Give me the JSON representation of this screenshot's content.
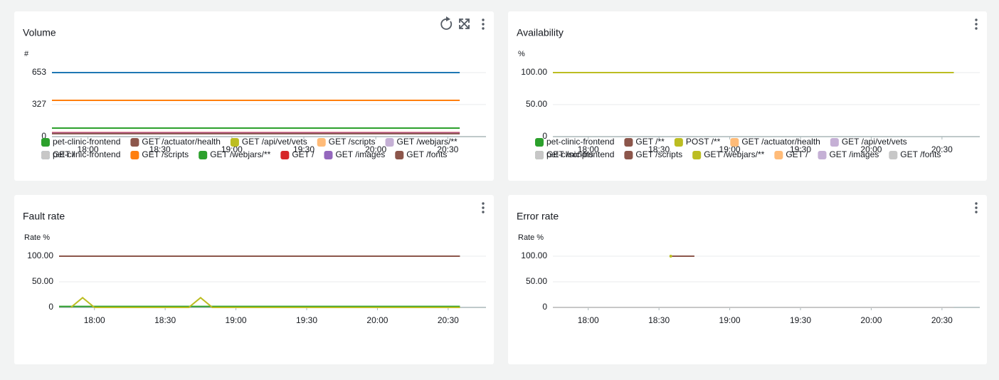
{
  "chart_data": [
    {
      "type": "line",
      "title": "Volume",
      "ylabel": "#",
      "grid": true,
      "x": [
        "17:45",
        "18:00",
        "18:15",
        "18:30",
        "18:45",
        "19:00",
        "19:15",
        "19:30",
        "19:45",
        "20:00",
        "20:15",
        "20:30",
        "20:35"
      ],
      "xlim": [
        "17:45",
        "20:40"
      ],
      "xticks": [
        "18:00",
        "18:30",
        "19:00",
        "19:30",
        "20:00",
        "20:30"
      ],
      "ylim": [
        0,
        653
      ],
      "yticks": [
        0,
        327,
        653
      ],
      "series": [
        {
          "name": "pet-clinic-frontend",
          "color": "#1f77b4",
          "values": [
            653,
            653,
            653,
            653,
            653,
            653,
            653,
            653,
            653,
            653,
            653,
            653,
            653
          ]
        },
        {
          "name": "GET /scripts",
          "color": "#ff7f0e",
          "values": [
            370,
            370,
            370,
            370,
            370,
            370,
            370,
            370,
            370,
            370,
            370,
            370,
            370
          ]
        },
        {
          "name": "GET /webjars/**",
          "color": "#2ca02c",
          "values": [
            87,
            87,
            87,
            87,
            87,
            87,
            87,
            87,
            87,
            87,
            87,
            87,
            87
          ]
        },
        {
          "name": "GET /",
          "color": "#d62728",
          "values": [
            40,
            40,
            40,
            40,
            40,
            40,
            40,
            40,
            40,
            40,
            40,
            40,
            40
          ]
        },
        {
          "name": "GET /images",
          "color": "#9467bd",
          "values": [
            35,
            35,
            35,
            35,
            35,
            35,
            35,
            35,
            35,
            35,
            35,
            35,
            35
          ]
        },
        {
          "name": "GET /fonts",
          "color": "#8c564b",
          "values": [
            30,
            30,
            30,
            30,
            30,
            30,
            30,
            30,
            30,
            30,
            30,
            30,
            30
          ]
        }
      ]
    },
    {
      "type": "line",
      "title": "Availability",
      "ylabel": "%",
      "grid": true,
      "x": [
        "17:45",
        "18:00",
        "18:15",
        "18:30",
        "18:45",
        "19:00",
        "19:15",
        "19:30",
        "19:45",
        "20:00",
        "20:15",
        "20:30",
        "20:35"
      ],
      "xlim": [
        "17:45",
        "20:40"
      ],
      "xticks": [
        "18:00",
        "18:30",
        "19:00",
        "19:30",
        "20:00",
        "20:30"
      ],
      "ylim": [
        0,
        100
      ],
      "yticks": [
        0,
        {
          "value": 50,
          "label": "50.00"
        },
        {
          "value": 100,
          "label": "100.00"
        }
      ],
      "series": [
        {
          "name": "pet-clinic-frontend",
          "color": "#2ca02c",
          "values": [
            100,
            100,
            100,
            100,
            100,
            100,
            100,
            100,
            100,
            100,
            100,
            100,
            100
          ]
        },
        {
          "name": "GET /scripts",
          "color": "#8c564b",
          "values": [
            null,
            null,
            null,
            null,
            null,
            null,
            null,
            null,
            null,
            null,
            null,
            null,
            null
          ]
        },
        {
          "name": "GET /webjars/**",
          "color": "#bcbd22",
          "values": [
            100,
            100,
            100,
            100,
            100,
            100,
            100,
            100,
            100,
            100,
            100,
            100,
            100
          ]
        },
        {
          "name": "GET /",
          "color": "#ffbb78",
          "values": [
            null,
            null,
            null,
            null,
            null,
            null,
            null,
            null,
            null,
            null,
            null,
            null,
            null
          ]
        },
        {
          "name": "GET /images",
          "color": "#c5b0d5",
          "values": [
            null,
            null,
            null,
            null,
            null,
            null,
            null,
            null,
            null,
            null,
            null,
            null,
            null
          ]
        },
        {
          "name": "GET /fonts",
          "color": "#c7c7c7",
          "values": [
            null,
            null,
            null,
            null,
            null,
            null,
            null,
            null,
            null,
            null,
            null,
            null,
            null
          ]
        }
      ]
    },
    {
      "type": "line",
      "title": "Fault rate",
      "ylabel": "Rate %",
      "grid": true,
      "x": [
        "17:45",
        "17:50",
        "17:55",
        "18:00",
        "18:15",
        "18:30",
        "18:40",
        "18:45",
        "18:50",
        "19:00",
        "19:15",
        "19:30",
        "19:45",
        "20:00",
        "20:15",
        "20:30",
        "20:35"
      ],
      "xlim": [
        "17:45",
        "20:40"
      ],
      "xticks": [
        "18:00",
        "18:30",
        "19:00",
        "19:30",
        "20:00",
        "20:30"
      ],
      "ylim": [
        0,
        100
      ],
      "yticks": [
        0,
        {
          "value": 50,
          "label": "50.00"
        },
        {
          "value": 100,
          "label": "100.00"
        }
      ],
      "series": [
        {
          "name": "pet-clinic-frontend",
          "color": "#2ca02c",
          "values": [
            2,
            2,
            2,
            2,
            2,
            2,
            2,
            2,
            2,
            2,
            2,
            2,
            2,
            2,
            2,
            2,
            2
          ]
        },
        {
          "name": "GET /actuator/health",
          "color": "#8c564b",
          "values": [
            100,
            100,
            100,
            100,
            100,
            100,
            100,
            100,
            100,
            100,
            100,
            100,
            100,
            100,
            100,
            100,
            100
          ]
        },
        {
          "name": "GET /api/vet/vets",
          "color": "#bcbd22",
          "values": [
            null,
            0,
            19,
            0,
            0,
            0,
            0,
            19,
            0,
            0,
            0,
            0,
            0,
            0,
            0,
            0,
            0
          ]
        },
        {
          "name": "GET /scripts",
          "color": "#ffbb78",
          "values": [
            null,
            null,
            null,
            null,
            null,
            null,
            null,
            null,
            null,
            null,
            null,
            null,
            null,
            null,
            null,
            null,
            null
          ]
        },
        {
          "name": "GET /webjars/**",
          "color": "#c5b0d5",
          "values": [
            null,
            null,
            null,
            null,
            null,
            null,
            null,
            null,
            null,
            null,
            null,
            null,
            null,
            null,
            null,
            null,
            null
          ]
        },
        {
          "name": "GET /",
          "color": "#c7c7c7",
          "values": [
            null,
            null,
            null,
            null,
            null,
            null,
            null,
            null,
            null,
            null,
            null,
            null,
            null,
            null,
            null,
            null,
            null
          ]
        }
      ]
    },
    {
      "type": "line",
      "title": "Error rate",
      "ylabel": "Rate %",
      "grid": true,
      "x": [
        "17:45",
        "18:00",
        "18:15",
        "18:30",
        "18:35",
        "18:45",
        "19:00",
        "19:15",
        "19:30",
        "19:45",
        "20:00",
        "20:15",
        "20:30",
        "20:35"
      ],
      "xlim": [
        "17:45",
        "20:40"
      ],
      "xticks": [
        "18:00",
        "18:30",
        "19:00",
        "19:30",
        "20:00",
        "20:30"
      ],
      "ylim": [
        0,
        100
      ],
      "yticks": [
        0,
        {
          "value": 50,
          "label": "50.00"
        },
        {
          "value": 100,
          "label": "100.00"
        }
      ],
      "series": [
        {
          "name": "pet-clinic-frontend",
          "color": "#2ca02c",
          "values": [
            null,
            null,
            null,
            null,
            null,
            null,
            null,
            null,
            null,
            null,
            null,
            null,
            null,
            null
          ]
        },
        {
          "name": "GET /**",
          "color": "#8c564b",
          "values": [
            null,
            null,
            null,
            null,
            100,
            100,
            null,
            null,
            null,
            null,
            null,
            null,
            null,
            null
          ]
        },
        {
          "name": "POST /**",
          "color": "#bcbd22",
          "values": [
            null,
            null,
            null,
            null,
            100,
            null,
            null,
            null,
            null,
            null,
            null,
            null,
            null,
            null
          ]
        },
        {
          "name": "GET /actuator/health",
          "color": "#ffbb78",
          "values": [
            null,
            null,
            null,
            null,
            null,
            null,
            null,
            null,
            null,
            null,
            null,
            null,
            null,
            null
          ]
        },
        {
          "name": "GET /api/vet/vets",
          "color": "#c5b0d5",
          "values": [
            null,
            null,
            null,
            null,
            null,
            null,
            null,
            null,
            null,
            null,
            null,
            null,
            null,
            null
          ]
        },
        {
          "name": "GET /scripts",
          "color": "#c7c7c7",
          "values": [
            0,
            0,
            0,
            0,
            0,
            0,
            0,
            0,
            0,
            0,
            0,
            0,
            0,
            0
          ]
        }
      ]
    }
  ]
}
